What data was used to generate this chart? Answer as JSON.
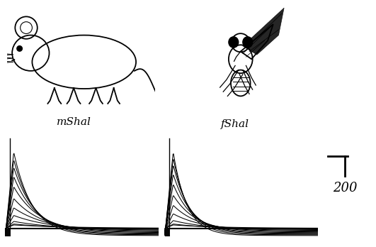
{
  "mshal_label": "mShal",
  "fshal_label": "fShal",
  "scale_label": "200",
  "background_color": "#ffffff",
  "n_traces": 11,
  "mshal_peak_scale": [
    0.04,
    0.06,
    0.1,
    0.18,
    0.28,
    0.4,
    0.55,
    0.68,
    0.8,
    0.9,
    1.0
  ],
  "fshal_peak_scale": [
    0.04,
    0.06,
    0.11,
    0.2,
    0.31,
    0.44,
    0.58,
    0.71,
    0.83,
    0.92,
    1.0
  ],
  "mshal_tau": [
    0.38,
    0.34,
    0.3,
    0.26,
    0.22,
    0.19,
    0.17,
    0.15,
    0.14,
    0.13,
    0.12
  ],
  "fshal_tau": [
    0.32,
    0.28,
    0.24,
    0.2,
    0.17,
    0.15,
    0.13,
    0.12,
    0.11,
    0.1,
    0.09
  ],
  "fig_width": 5.31,
  "fig_height": 3.48,
  "dpi": 100,
  "label_fontsize": 11
}
